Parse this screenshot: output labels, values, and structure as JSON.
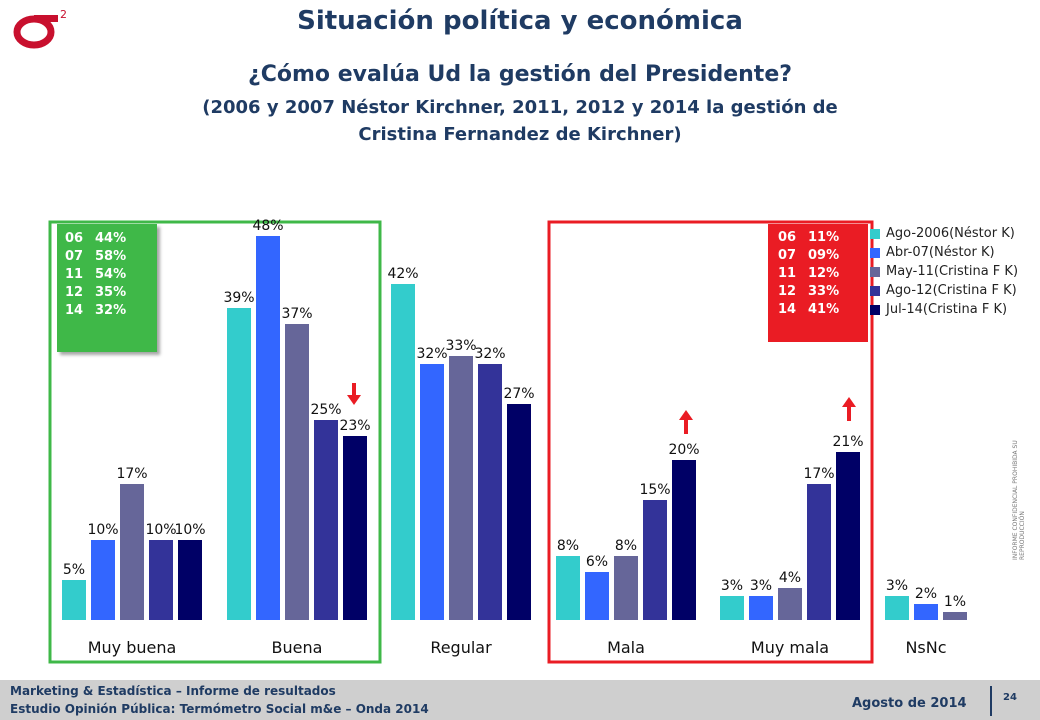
{
  "header": {
    "title": "Situación política y económica",
    "question": "¿Cómo evalúa Ud la gestión del Presidente?",
    "subtitle_line1": "(2006 y 2007 Néstor Kirchner, 2011,  2012 y 2014 la gestión de",
    "subtitle_line2": "Cristina Fernandez de Kirchner)",
    "logo_superscript": "2"
  },
  "colors": {
    "series": [
      "#33cccc",
      "#3366ff",
      "#666699",
      "#333399",
      "#000066"
    ],
    "green": "#3fb848",
    "red": "#ea1c24",
    "title": "#1f3b63"
  },
  "chart_data": {
    "type": "bar",
    "categories": [
      "Muy buena",
      "Buena",
      "Regular",
      "Mala",
      "Muy mala",
      "NsNc"
    ],
    "series": [
      {
        "name": "Ago-2006(Néstor K)",
        "values": [
          5,
          39,
          42,
          8,
          3,
          3
        ]
      },
      {
        "name": "Abr-07(Néstor K)",
        "values": [
          10,
          48,
          32,
          6,
          3,
          2
        ]
      },
      {
        "name": "May-11(Cristina F K)",
        "values": [
          17,
          37,
          33,
          8,
          4,
          1
        ]
      },
      {
        "name": "Ago-12(Cristina F K)",
        "values": [
          10,
          25,
          32,
          15,
          17,
          null
        ]
      },
      {
        "name": "Jul-14(Cristina F K)",
        "values": [
          10,
          23,
          27,
          20,
          21,
          null
        ]
      }
    ],
    "value_suffix": "%",
    "ylim": [
      0,
      50
    ],
    "grid": false,
    "legend": "top-right"
  },
  "positive_box": {
    "rows": [
      {
        "k": "06",
        "v": "44%"
      },
      {
        "k": "07",
        "v": "58%"
      },
      {
        "k": "11",
        "v": "54%"
      },
      {
        "k": "12",
        "v": "35%"
      },
      {
        "k": "14",
        "v": "32%"
      }
    ]
  },
  "negative_box": {
    "rows": [
      {
        "k": "06",
        "v": "11%"
      },
      {
        "k": "07",
        "v": "09%"
      },
      {
        "k": "11",
        "v": "12%"
      },
      {
        "k": "12",
        "v": "33%"
      },
      {
        "k": "14",
        "v": "41%"
      }
    ]
  },
  "side_note": "INFORME CONFIDENCIAL PROHIBIDA SU REPRODUCCIÓN",
  "footer": {
    "line1": "Marketing & Estadística – Informe de resultados",
    "line2": "Estudio Opinión Pública: Termómetro Social m&e – Onda 2014",
    "date": "Agosto de 2014",
    "page": "24"
  }
}
